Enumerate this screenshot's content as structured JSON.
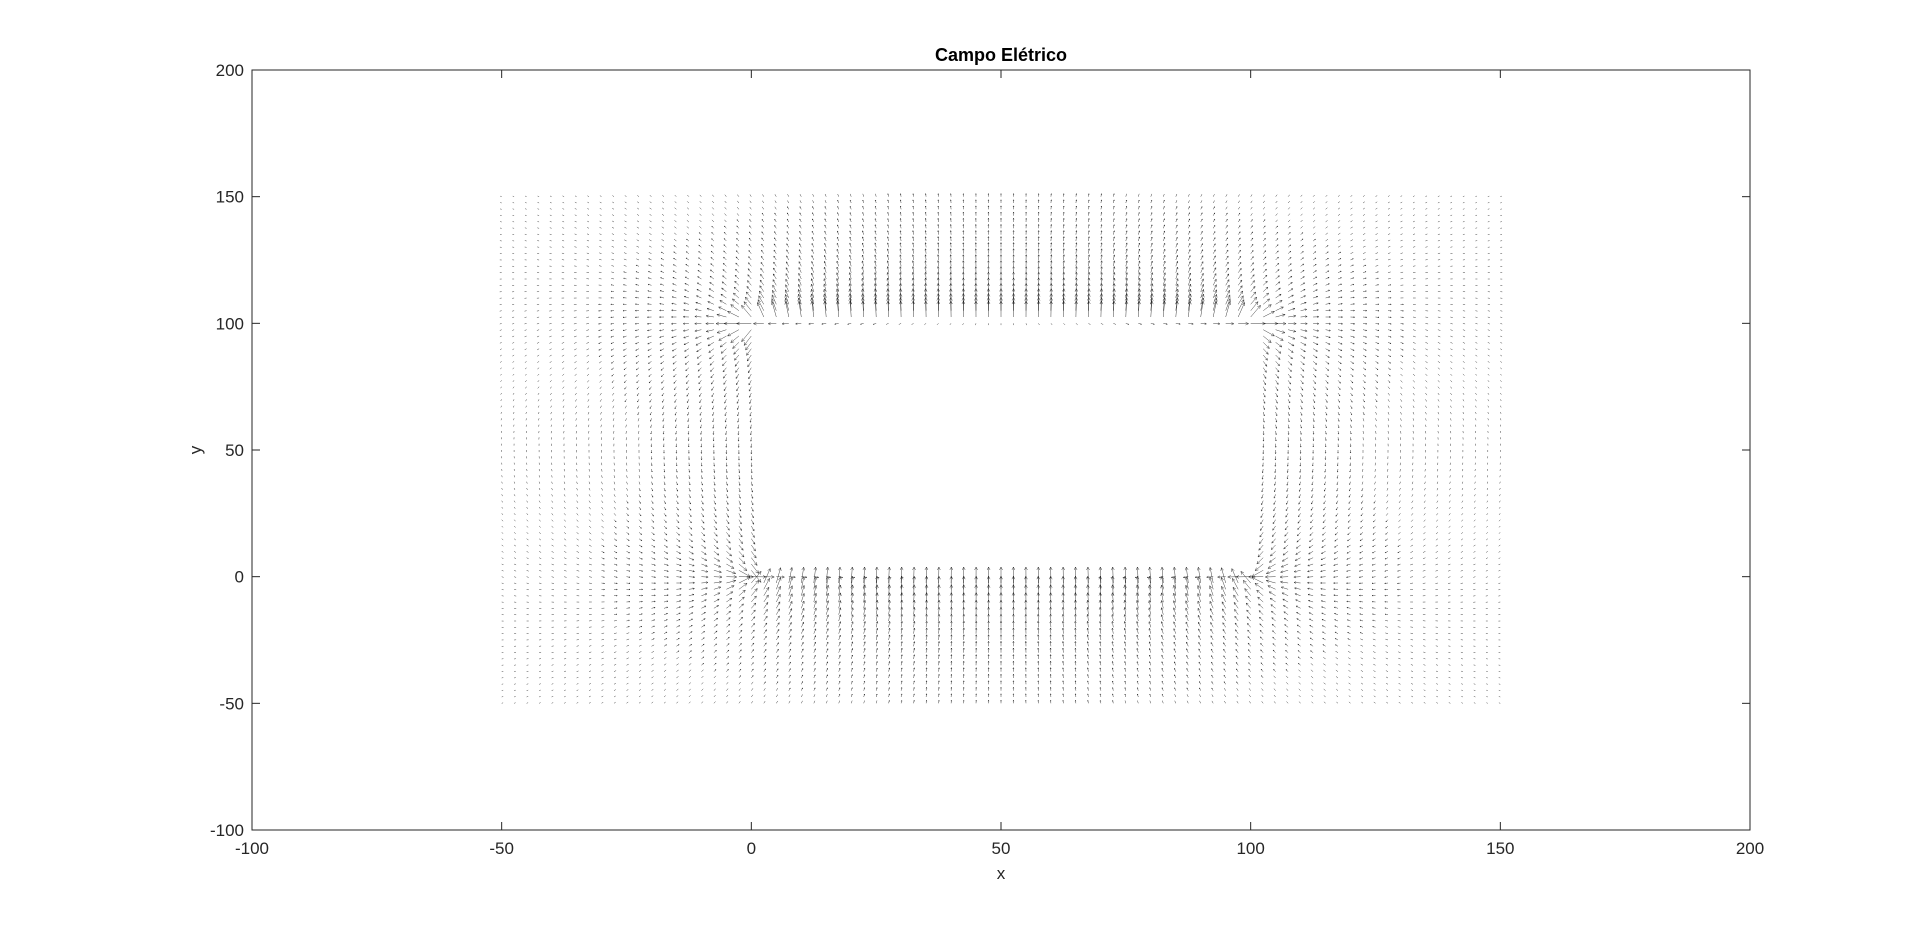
{
  "chart_data": {
    "type": "quiver",
    "title": "Campo Elétrico",
    "xlabel": "x",
    "ylabel": "y",
    "xlim": [
      -100,
      200
    ],
    "ylim": [
      -100,
      200
    ],
    "x_ticks": [
      -100,
      -50,
      0,
      50,
      100,
      150,
      200
    ],
    "y_ticks": [
      -100,
      -50,
      0,
      50,
      100,
      150,
      200
    ],
    "grid": false,
    "box": true,
    "field_domain": {
      "x_range": [
        -50,
        150
      ],
      "y_range": [
        -50,
        150
      ]
    },
    "plates": [
      {
        "x_range": [
          0,
          100
        ],
        "y": 100
      },
      {
        "x_range": [
          0,
          100
        ],
        "y": 0
      }
    ],
    "colors": {
      "arrows": "#000000",
      "axes": "#262626",
      "background": "#ffffff"
    }
  }
}
